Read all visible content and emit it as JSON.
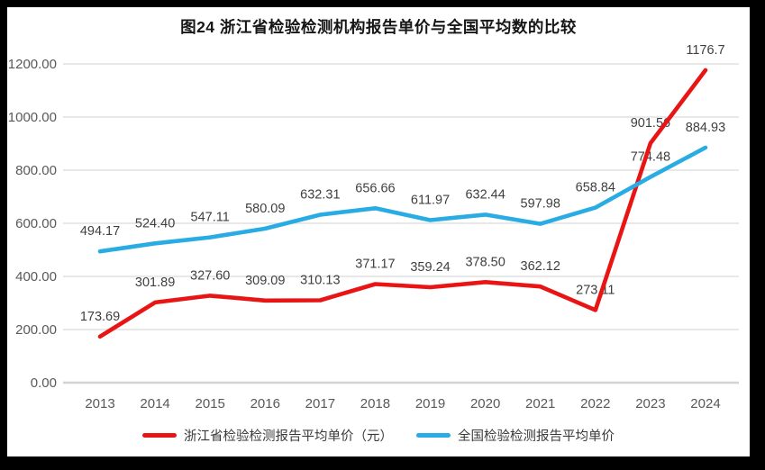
{
  "title": "图24  浙江省检验检测机构报告单价与全国平均数的比较",
  "chart_data": {
    "type": "line",
    "title": "图24  浙江省检验检测机构报告单价与全国平均数的比较",
    "categories": [
      "2013",
      "2014",
      "2015",
      "2016",
      "2017",
      "2018",
      "2019",
      "2020",
      "2021",
      "2022",
      "2023",
      "2024"
    ],
    "series": [
      {
        "name": "浙江省检验检测报告平均单价（元）",
        "color": "#e91414",
        "values": [
          173.69,
          301.89,
          327.6,
          309.09,
          310.13,
          371.17,
          359.24,
          378.5,
          362.12,
          273.11,
          901.56,
          1176.7
        ],
        "labels": [
          "173.69",
          "301.89",
          "327.60",
          "309.09",
          "310.13",
          "371.17",
          "359.24",
          "378.50",
          "362.12",
          "273.11",
          "901.56",
          "1176.7"
        ]
      },
      {
        "name": "全国检验检测报告平均单价",
        "color": "#29ace3",
        "values": [
          494.17,
          524.4,
          547.11,
          580.09,
          632.31,
          656.66,
          611.97,
          632.44,
          597.98,
          658.84,
          774.48,
          884.93
        ],
        "labels": [
          "494.17",
          "524.40",
          "547.11",
          "580.09",
          "632.31",
          "656.66",
          "611.97",
          "632.44",
          "597.98",
          "658.84",
          "774.48",
          "884.93"
        ]
      }
    ],
    "yticks": [
      "0.00",
      "200.00",
      "400.00",
      "600.00",
      "800.00",
      "1000.00",
      "1200.00"
    ],
    "ylim": [
      0,
      1200
    ],
    "ytick_step": 200,
    "grid": true,
    "legend_position": "bottom",
    "colors": {
      "grid": "#dadada",
      "axis_baseline": "#d4d4d4",
      "axis_text": "#595959",
      "data_label_text": "#3f3f3f",
      "background": "#ffffff",
      "frame": "#000000"
    }
  }
}
